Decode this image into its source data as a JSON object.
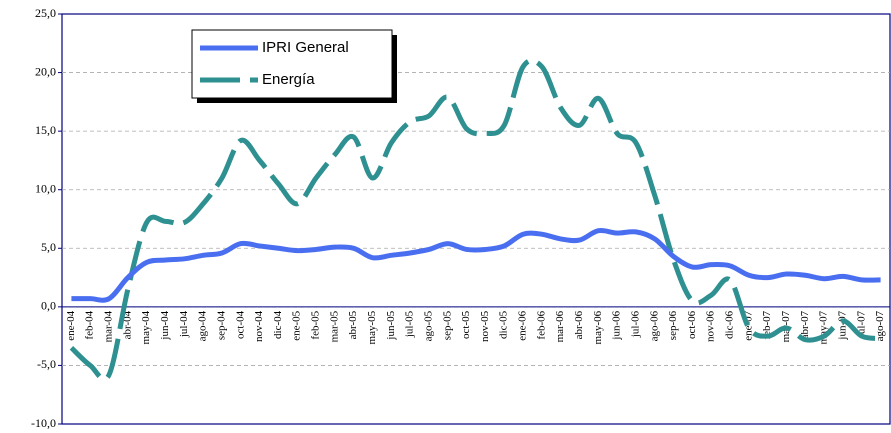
{
  "chart_data": {
    "type": "line",
    "categories": [
      "ene-04",
      "feb-04",
      "mar-04",
      "abr-04",
      "may-04",
      "jun-04",
      "jul-04",
      "ago-04",
      "sep-04",
      "oct-04",
      "nov-04",
      "dic-04",
      "ene-05",
      "feb-05",
      "mar-05",
      "abr-05",
      "may-05",
      "jun-05",
      "jul-05",
      "ago-05",
      "sep-05",
      "oct-05",
      "nov-05",
      "dic-05",
      "ene-06",
      "feb-06",
      "mar-06",
      "abr-06",
      "may-06",
      "jun-06",
      "jul-06",
      "ago-06",
      "sep-06",
      "oct-06",
      "nov-06",
      "dic-06",
      "ene-07",
      "feb-07",
      "mar-07",
      "abr-07",
      "may-07",
      "jun-07",
      "jul-07",
      "ago-07"
    ],
    "series": [
      {
        "name": "IPRI General",
        "color": "#4a6ef0",
        "values": [
          0.7,
          0.7,
          0.7,
          2.5,
          3.8,
          4.0,
          4.1,
          4.4,
          4.6,
          5.4,
          5.2,
          5.0,
          4.8,
          4.9,
          5.1,
          5.0,
          4.2,
          4.4,
          4.6,
          4.9,
          5.4,
          4.9,
          4.9,
          5.2,
          6.2,
          6.2,
          5.8,
          5.7,
          6.5,
          6.3,
          6.4,
          5.8,
          4.3,
          3.4,
          3.6,
          3.5,
          2.7,
          2.5,
          2.8,
          2.7,
          2.4,
          2.6,
          2.3,
          2.3
        ]
      },
      {
        "name": "Energía",
        "color": "#2e9090",
        "dashed": true,
        "values": [
          -3.5,
          -5.0,
          -5.8,
          1.5,
          7.2,
          7.3,
          7.2,
          8.8,
          11.0,
          14.2,
          12.5,
          10.5,
          8.8,
          11.0,
          13.0,
          14.5,
          11.0,
          14.0,
          15.8,
          16.3,
          17.9,
          15.2,
          14.8,
          15.5,
          20.5,
          20.5,
          17.0,
          15.5,
          17.8,
          14.8,
          14.0,
          9.5,
          4.0,
          0.5,
          1.0,
          2.3,
          -1.8,
          -2.5,
          -1.8,
          -2.8,
          -2.5,
          -1.2,
          -2.5,
          -2.7
        ]
      }
    ],
    "ylim": [
      -10,
      25
    ],
    "yticks": [
      {
        "value": -10,
        "label": "-10,0"
      },
      {
        "value": -5,
        "label": "-5,0"
      },
      {
        "value": 0,
        "label": "0,0"
      },
      {
        "value": 5,
        "label": "5,0"
      },
      {
        "value": 10,
        "label": "10,0"
      },
      {
        "value": 15,
        "label": "15,0"
      },
      {
        "value": 20,
        "label": "20,0"
      },
      {
        "value": 25,
        "label": "25,0"
      }
    ],
    "grid": true,
    "legend": "upper left"
  }
}
